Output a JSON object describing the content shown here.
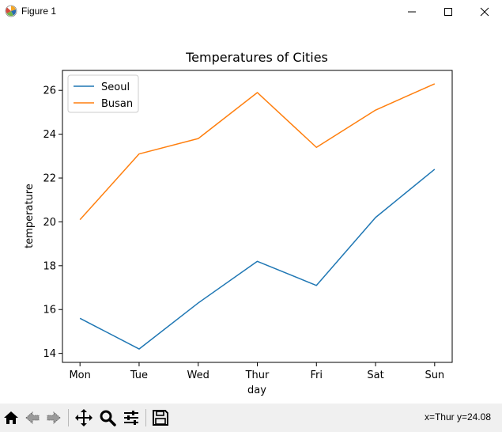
{
  "window": {
    "title": "Figure 1",
    "icon": "matplotlib-icon",
    "controls": [
      "minimize-icon",
      "maximize-icon",
      "close-icon"
    ]
  },
  "chart_data": {
    "type": "line",
    "title": "Temperatures of Cities",
    "xlabel": "day",
    "ylabel": "temperature",
    "categories": [
      "Mon",
      "Tue",
      "Wed",
      "Thur",
      "Fri",
      "Sat",
      "Sun"
    ],
    "series": [
      {
        "name": "Seoul",
        "color": "#1f77b4",
        "values": [
          15.6,
          14.2,
          16.3,
          18.2,
          17.1,
          20.2,
          22.4
        ]
      },
      {
        "name": "Busan",
        "color": "#ff7f0e",
        "values": [
          20.1,
          23.1,
          23.8,
          25.9,
          23.4,
          25.1,
          26.3
        ]
      }
    ],
    "yticks": [
      14,
      16,
      18,
      20,
      22,
      24,
      26
    ],
    "ylim": [
      13.59,
      26.91
    ],
    "grid": false,
    "legend_position": "top-left"
  },
  "toolbar": {
    "buttons": [
      {
        "name": "home-button",
        "icon": "home-icon"
      },
      {
        "name": "back-button",
        "icon": "back-arrow-icon"
      },
      {
        "name": "forward-button",
        "icon": "forward-arrow-icon"
      },
      {
        "name": "pan-button",
        "icon": "pan-icon"
      },
      {
        "name": "zoom-button",
        "icon": "zoom-icon"
      },
      {
        "name": "configure-subplots-button",
        "icon": "sliders-icon"
      },
      {
        "name": "save-button",
        "icon": "save-icon"
      }
    ],
    "coordinates": "x=Thur y=24.08"
  }
}
